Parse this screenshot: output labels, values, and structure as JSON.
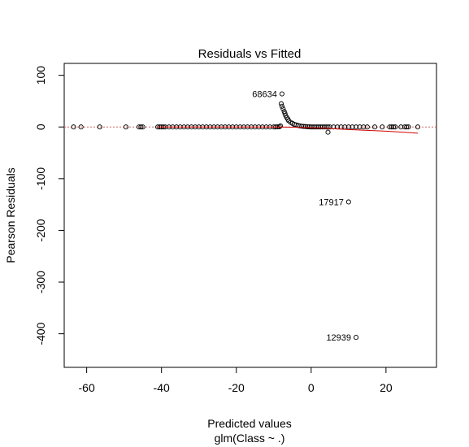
{
  "chart_data": {
    "type": "scatter",
    "title": "Residuals vs Fitted",
    "xlabel": "Predicted values",
    "xlabel_sub": "glm(Class ~ .)",
    "ylabel": "Pearson Residuals",
    "xlim": [
      -66,
      33.5
    ],
    "ylim": [
      -465,
      123
    ],
    "x_ticks": [
      -60,
      -40,
      -20,
      0,
      20
    ],
    "y_ticks": [
      100,
      0,
      -100,
      -200,
      -300,
      -400
    ],
    "grid": false,
    "reference_line": {
      "y": 0,
      "color": "#d06060",
      "style": "dotted"
    },
    "smooth_line": {
      "color": "#d00000",
      "x": [
        -41,
        -30,
        -20,
        -10,
        -5,
        0,
        5,
        10,
        20,
        28.5
      ],
      "y": [
        0,
        0,
        0,
        0,
        -0.5,
        -1.5,
        -3,
        -5,
        -8,
        -12
      ]
    },
    "points": {
      "x": [
        -63.5,
        -61.5,
        -56.5,
        -49.5,
        -46,
        -45.5,
        -45,
        -41,
        -40.5,
        -40,
        -39.5,
        -39,
        -38,
        -37,
        -36,
        -35,
        -34,
        -33,
        -32,
        -31,
        -30,
        -29,
        -28,
        -27,
        -26,
        -25,
        -24,
        -23,
        -22,
        -21,
        -20,
        -19,
        -18,
        -17,
        -16,
        -15,
        -14,
        -13,
        -12,
        -11,
        -10,
        -9.5,
        -9,
        -8.5,
        -8.2,
        -8.0,
        -7.8,
        -7.5,
        -7.2,
        -7.0,
        -6.8,
        -6.5,
        -6.2,
        -6.0,
        -5.5,
        -5.0,
        -4.5,
        -4.0,
        -3.5,
        -3.0,
        -2.5,
        -2.0,
        -1.5,
        -1.0,
        -0.5,
        0,
        0.5,
        1,
        1.5,
        2,
        2.5,
        3,
        3.5,
        4,
        4.5,
        4.5,
        5,
        6,
        7,
        8,
        9,
        10,
        11,
        12,
        13,
        14,
        15,
        17,
        19,
        21,
        21.5,
        22,
        22.5,
        24,
        25,
        25.5,
        26,
        28.5,
        -7.8,
        10,
        12
      ],
      "y": [
        0,
        0,
        0,
        0,
        0,
        0,
        0,
        0,
        0,
        0,
        0,
        0,
        0,
        0,
        0,
        0,
        0,
        0,
        0,
        0,
        0,
        0,
        0,
        0,
        0,
        0,
        0,
        0,
        0,
        0,
        0,
        0,
        0,
        0,
        0,
        0,
        0,
        0,
        0,
        0,
        0,
        0,
        0.3,
        0.5,
        2,
        45,
        40,
        35,
        30,
        26,
        22,
        18,
        15,
        12,
        9,
        7,
        5,
        4,
        3,
        2,
        1.5,
        1,
        0.8,
        0.5,
        0.3,
        0,
        0,
        0,
        0,
        0,
        0,
        0,
        0,
        0,
        -10,
        0,
        0,
        0,
        0,
        0,
        0,
        0,
        0,
        0,
        0,
        0,
        0,
        0,
        0,
        0,
        0,
        0,
        0,
        0,
        0,
        0,
        0,
        0,
        64,
        -145,
        -407
      ]
    },
    "labeled_points": [
      {
        "label": "68634",
        "x": -7.8,
        "y": 64
      },
      {
        "label": "17917",
        "x": 10,
        "y": -145
      },
      {
        "label": "12939",
        "x": 12,
        "y": -407
      }
    ]
  }
}
